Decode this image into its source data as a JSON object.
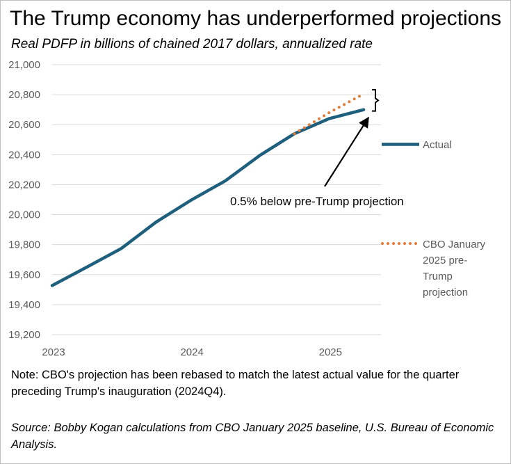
{
  "title": "The Trump economy has underperformed projections",
  "subtitle": "Real PDFP in billions of chained 2017 dollars, annualized rate",
  "note": "Note: CBO's projection has been rebased to match the latest actual value for the quarter preceding Trump's inauguration (2024Q4).",
  "source": "Source: Bobby Kogan calculations from CBO January 2025 baseline, U.S. Bureau of Economic Analysis.",
  "colors": {
    "actual": "#1f5f7e",
    "projection": "#e07b39",
    "grid": "#d9d9d9",
    "axis": "#595959"
  },
  "chart_data": {
    "type": "line",
    "title": "The Trump economy has underperformed projections",
    "ylabel": "Real PDFP in billions of chained 2017 dollars, annualized rate",
    "xlabel": "",
    "ylim": [
      19200,
      21000
    ],
    "yticks": [
      19200,
      19400,
      19600,
      19800,
      20000,
      20200,
      20400,
      20600,
      20800,
      21000
    ],
    "ytick_labels": [
      "19,200",
      "19,400",
      "19,600",
      "19,800",
      "20,000",
      "20,200",
      "20,400",
      "20,600",
      "20,800",
      "21,000"
    ],
    "xlim": [
      2023,
      2025.375
    ],
    "xticks": [
      2023,
      2024,
      2025
    ],
    "xtick_labels": [
      "2023",
      "2024",
      "2025"
    ],
    "grid": true,
    "legend_position": "right",
    "series": [
      {
        "name": "Actual",
        "style": "solid",
        "x": [
          2023,
          2023.25,
          2023.5,
          2023.75,
          2024,
          2024.25,
          2024.5,
          2024.75,
          2025,
          2025.25
        ],
        "values": [
          19527,
          19650,
          19775,
          19950,
          20095,
          20225,
          20395,
          20540,
          20640,
          20700
        ]
      },
      {
        "name": "CBO January 2025 pre-Trump projection",
        "legend_lines": [
          "CBO January",
          "2025 pre-",
          "Trump",
          "projection"
        ],
        "style": "dotted",
        "x": [
          2024.75,
          2025,
          2025.25
        ],
        "values": [
          20540,
          20680,
          20805
        ]
      }
    ],
    "annotation": {
      "text": "0.5% below pre-Trump projection",
      "points_to": {
        "x": 2025.25,
        "y": 20700
      }
    }
  }
}
